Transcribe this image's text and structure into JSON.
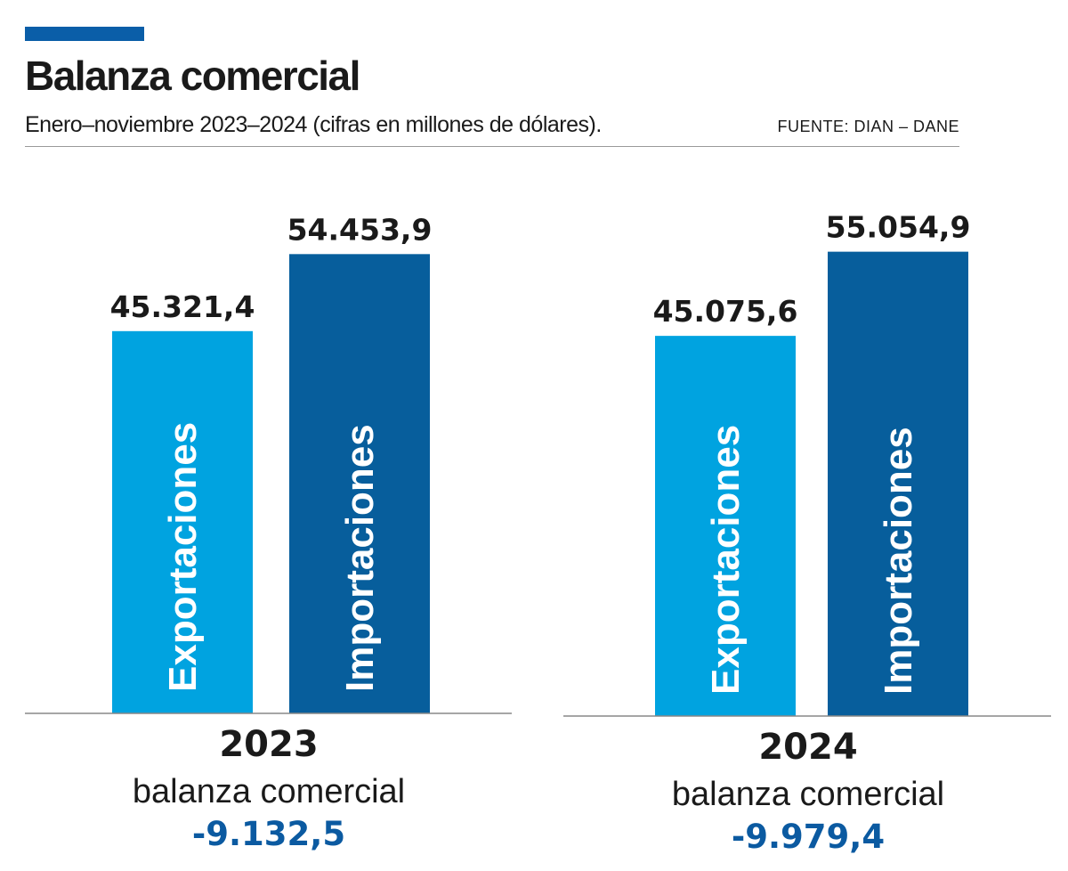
{
  "header": {
    "title": "Balanza comercial",
    "subtitle": "Enero–noviembre 2023–2024  (cifras en millones de dólares).",
    "source": "FUENTE: DIAN – DANE"
  },
  "colors": {
    "accent": "#0a5ea8",
    "exports": "#00a3e0",
    "imports": "#075e9c",
    "balance_text": "#0b5aa1",
    "axis": "#888888"
  },
  "chart_data": [
    {
      "type": "bar",
      "year": "2023",
      "categories": [
        "Exportaciones",
        "Importaciones"
      ],
      "values": [
        45321.4,
        54453.9
      ],
      "value_labels": [
        "45.321,4",
        "54.453,9"
      ],
      "balance_label": "balanza comercial",
      "balance_value": "-9.132,5"
    },
    {
      "type": "bar",
      "year": "2024",
      "categories": [
        "Exportaciones",
        "Importaciones"
      ],
      "values": [
        45075.6,
        55054.9
      ],
      "value_labels": [
        "45.075,6",
        "55.054,9"
      ],
      "balance_label": "balanza comercial",
      "balance_value": "-9.979,4"
    }
  ]
}
